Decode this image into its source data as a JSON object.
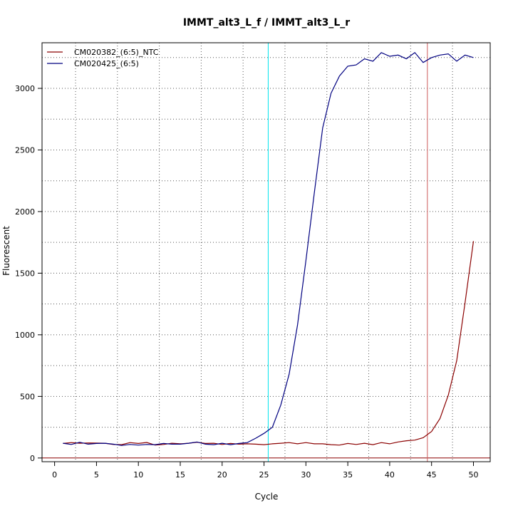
{
  "chart_data": {
    "type": "line",
    "title": "IMMT_alt3_L_f / IMMT_alt3_L_r",
    "xlabel": "Cycle",
    "ylabel": "Fluorescent",
    "xlim": [
      -1.5,
      52
    ],
    "ylim": [
      -30,
      3370
    ],
    "xticks": [
      0,
      5,
      10,
      15,
      20,
      25,
      30,
      35,
      40,
      45,
      50
    ],
    "yticks": [
      0,
      500,
      1000,
      1500,
      2000,
      2500,
      3000
    ],
    "grid": true,
    "legend_position": "top-left",
    "threshold_x": [
      25.5,
      44.5
    ],
    "series": [
      {
        "name": "CM020382_(6:5)_NTC",
        "color": "#8b0000",
        "x": [
          1,
          2,
          3,
          4,
          5,
          6,
          7,
          8,
          9,
          10,
          11,
          12,
          13,
          14,
          15,
          16,
          17,
          18,
          19,
          20,
          21,
          22,
          23,
          24,
          25,
          26,
          27,
          28,
          29,
          30,
          31,
          32,
          33,
          34,
          35,
          36,
          37,
          38,
          39,
          40,
          41,
          42,
          43,
          44,
          45,
          46,
          47,
          48,
          49,
          50
        ],
        "values": [
          118,
          125,
          120,
          122,
          121,
          120,
          110,
          108,
          125,
          118,
          126,
          105,
          110,
          120,
          115,
          120,
          128,
          118,
          120,
          110,
          118,
          112,
          115,
          112,
          108,
          115,
          120,
          125,
          115,
          125,
          115,
          115,
          108,
          105,
          118,
          110,
          120,
          108,
          125,
          115,
          130,
          140,
          145,
          165,
          215,
          320,
          510,
          790,
          1260,
          1760
        ]
      },
      {
        "name": "CM020425_(6:5)",
        "color": "#000080",
        "x": [
          1,
          2,
          3,
          4,
          5,
          6,
          7,
          8,
          9,
          10,
          11,
          12,
          13,
          14,
          15,
          16,
          17,
          18,
          19,
          20,
          21,
          22,
          23,
          24,
          25,
          26,
          27,
          28,
          29,
          30,
          31,
          32,
          33,
          34,
          35,
          36,
          37,
          38,
          39,
          40,
          41,
          42,
          43,
          44,
          45,
          46,
          47,
          48,
          49,
          50
        ],
        "values": [
          120,
          110,
          128,
          112,
          118,
          120,
          112,
          102,
          110,
          105,
          110,
          108,
          118,
          112,
          112,
          120,
          130,
          112,
          108,
          120,
          108,
          118,
          125,
          160,
          200,
          250,
          430,
          680,
          1080,
          1600,
          2150,
          2680,
          2960,
          3100,
          3180,
          3190,
          3240,
          3220,
          3290,
          3260,
          3270,
          3240,
          3290,
          3210,
          3250,
          3270,
          3280,
          3220,
          3270,
          3250
        ]
      }
    ]
  }
}
